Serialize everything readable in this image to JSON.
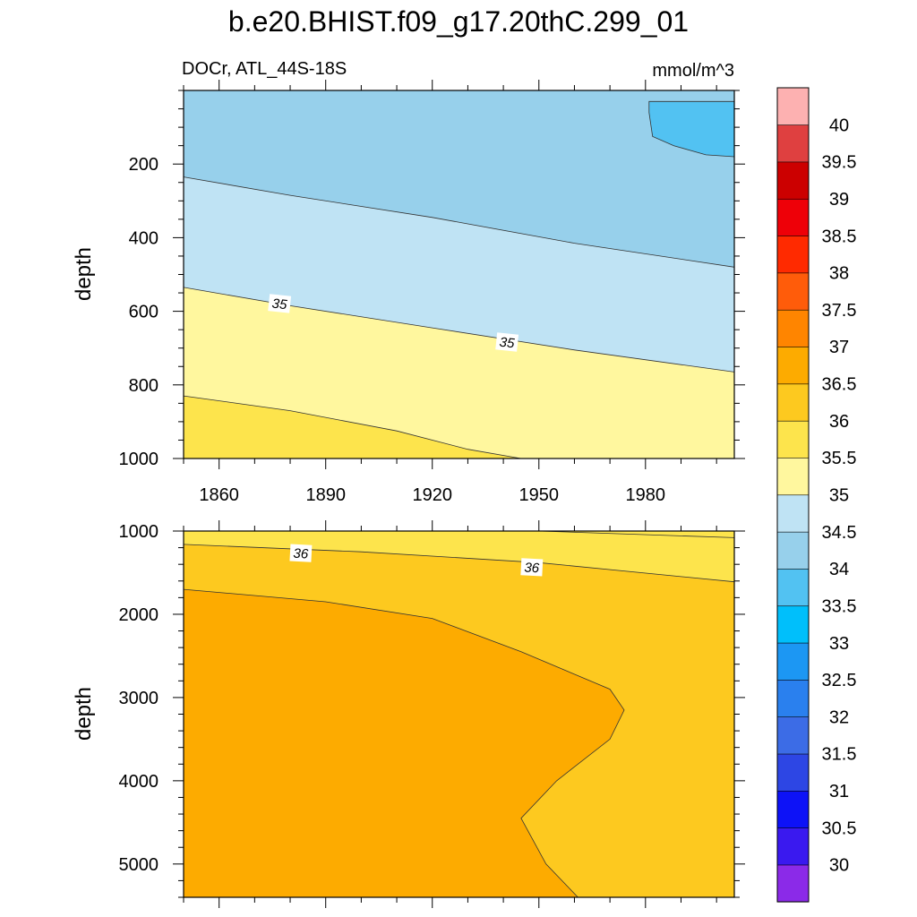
{
  "title": "b.e20.BHIST.f09_g17.20thC.299_01",
  "subtitle_left": "DOCr, ATL_44S-18S",
  "subtitle_right": "mmol/m^3",
  "chart_data": [
    {
      "type": "heatmap",
      "panel": "upper",
      "ylabel": "depth",
      "xlim": [
        1850,
        2005
      ],
      "ylim": [
        1000,
        0
      ],
      "x_ticks": [
        1860,
        1890,
        1920,
        1950,
        1980
      ],
      "y_ticks": [
        200,
        400,
        600,
        800,
        1000
      ],
      "contour_labels": [
        {
          "text": "35",
          "x": 1877,
          "y": 580
        },
        {
          "text": "35",
          "x": 1941,
          "y": 685
        }
      ],
      "regions": [
        {
          "level": "34-34.5",
          "color": "#97d0eb",
          "boundary_lower": [
            [
              1850,
              235
            ],
            [
              1880,
              285
            ],
            [
              1920,
              345
            ],
            [
              1960,
              415
            ],
            [
              2005,
              480
            ]
          ]
        },
        {
          "level": "33.5-34",
          "color": "#52c2f2",
          "patch": [
            [
              1981,
              30
            ],
            [
              2005,
              30
            ],
            [
              2005,
              180
            ],
            [
              1997,
              175
            ],
            [
              1988,
              150
            ],
            [
              1982,
              125
            ],
            [
              1981,
              60
            ]
          ]
        },
        {
          "level": "34.5-35",
          "color": "#bfe3f4",
          "boundary_lower": [
            [
              1850,
              535
            ],
            [
              1880,
              585
            ],
            [
              1920,
              645
            ],
            [
              1960,
              705
            ],
            [
              2005,
              765
            ]
          ]
        },
        {
          "level": "35-35.5",
          "color": "#fff79e",
          "boundary_lower": [
            [
              1850,
              830
            ],
            [
              1880,
              870
            ],
            [
              1910,
              925
            ],
            [
              1930,
              975
            ],
            [
              1945,
              1000
            ]
          ]
        },
        {
          "level": "35.5-36",
          "color": "#fde44c"
        }
      ]
    },
    {
      "type": "heatmap",
      "panel": "lower",
      "ylabel": "depth",
      "xlim": [
        1850,
        2005
      ],
      "ylim": [
        5400,
        1000
      ],
      "y_ticks": [
        1000,
        2000,
        3000,
        4000,
        5000
      ],
      "contour_labels": [
        {
          "text": "36",
          "x": 1883,
          "y": 1270
        },
        {
          "text": "36",
          "x": 1948,
          "y": 1440
        }
      ],
      "regions": [
        {
          "level": "35.5-36",
          "color": "#fde44c",
          "boundary_lower": [
            [
              1850,
              1160
            ],
            [
              1900,
              1250
            ],
            [
              1950,
              1380
            ],
            [
              2005,
              1610
            ]
          ],
          "boundary_upper": [
            [
              1950,
              1000
            ],
            [
              2005,
              1080
            ]
          ]
        },
        {
          "level": "36-36.5",
          "color": "#fdc91f"
        },
        {
          "level": "36.5-37",
          "color": "#fdab00",
          "boundary": [
            [
              1850,
              1700
            ],
            [
              1890,
              1850
            ],
            [
              1920,
              2050
            ],
            [
              1945,
              2450
            ],
            [
              1970,
              2900
            ],
            [
              1974,
              3150
            ],
            [
              1970,
              3500
            ],
            [
              1955,
              4000
            ],
            [
              1945,
              4450
            ],
            [
              1952,
              5000
            ],
            [
              1961,
              5400
            ]
          ]
        }
      ]
    }
  ],
  "colorbar": {
    "levels": [
      "30",
      "30.5",
      "31",
      "31.5",
      "32",
      "32.5",
      "33",
      "33.5",
      "34",
      "34.5",
      "35",
      "35.5",
      "36",
      "36.5",
      "37",
      "37.5",
      "38",
      "38.5",
      "39",
      "39.5",
      "40"
    ],
    "colors": [
      "#8b2ae8",
      "#3a19ef",
      "#0d12f7",
      "#2d46e4",
      "#3c6ce6",
      "#2a80ee",
      "#1c97f3",
      "#00bffb",
      "#52c2f2",
      "#97d0eb",
      "#bfe3f4",
      "#fff79e",
      "#fde44c",
      "#fdc91f",
      "#fdab00",
      "#ff8500",
      "#ff5c0a",
      "#ff2a00",
      "#ee0008",
      "#cc0000",
      "#df4040",
      "#fdb1b1"
    ]
  }
}
